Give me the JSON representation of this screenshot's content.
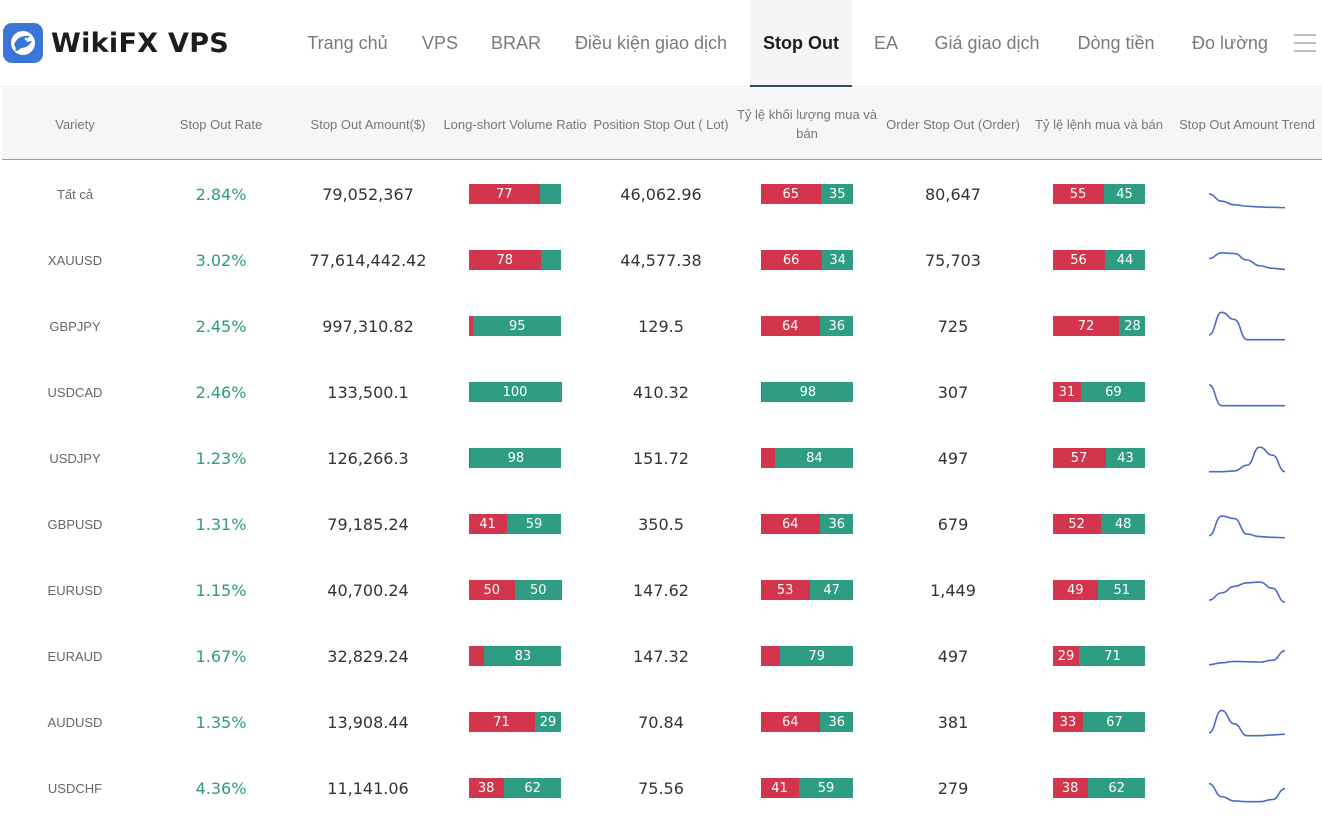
{
  "app": {
    "logo_text": "WikiFX VPS",
    "logo_icon": "eagle-icon"
  },
  "nav": {
    "items": [
      {
        "label": "Trang chủ",
        "active": false
      },
      {
        "label": "VPS",
        "active": false
      },
      {
        "label": "BRAR",
        "active": false
      },
      {
        "label": "Điều kiện giao dịch",
        "active": false
      },
      {
        "label": "Stop Out",
        "active": true
      },
      {
        "label": "EA",
        "active": false
      },
      {
        "label": "Giá giao dịch",
        "active": false
      },
      {
        "label": "Dòng tiền",
        "active": false
      },
      {
        "label": "Đo lường",
        "active": false
      }
    ],
    "menu_icon": "hamburger-menu-icon"
  },
  "table": {
    "headers": [
      "Variety",
      "Stop Out Rate",
      "Stop Out Amount($)",
      "Long-short Volume Ratio",
      "Position Stop Out ( Lot)",
      "Tỷ lệ khối lượng mua và bán",
      "Order Stop Out (Order)",
      "Tỷ lệ lệnh mua và bán",
      "Stop Out Amount Trend"
    ],
    "rows": [
      {
        "variety": "Tất cả",
        "rate": "2.84%",
        "amount": "79,052,367",
        "ls_ratio": [
          77,
          23
        ],
        "ls_labels": [
          "77",
          ""
        ],
        "position": "46,062.96",
        "vol_ratio": [
          65,
          35
        ],
        "vol_labels": [
          "65",
          "35"
        ],
        "orders": "80,647",
        "order_ratio": [
          55,
          45
        ],
        "order_labels": [
          "55",
          "45"
        ],
        "trend": [
          5,
          7,
          8,
          8.4,
          8.6,
          8.7,
          8.8
        ]
      },
      {
        "variety": "XAUUSD",
        "rate": "3.02%",
        "amount": "77,614,442.42",
        "ls_ratio": [
          78,
          22
        ],
        "ls_labels": [
          "78",
          ""
        ],
        "position": "44,577.38",
        "vol_ratio": [
          66,
          34
        ],
        "vol_labels": [
          "66",
          "34"
        ],
        "orders": "75,703",
        "order_ratio": [
          56,
          44
        ],
        "order_labels": [
          "56",
          "44"
        ],
        "trend": [
          4.6,
          3,
          3.2,
          5,
          6.6,
          7.3,
          7.6
        ]
      },
      {
        "variety": "GBPJPY",
        "rate": "2.45%",
        "amount": "997,310.82",
        "ls_ratio": [
          5,
          95
        ],
        "ls_labels": [
          "",
          "95"
        ],
        "position": "129.5",
        "vol_ratio": [
          64,
          36
        ],
        "vol_labels": [
          "64",
          "36"
        ],
        "orders": "725",
        "order_ratio": [
          72,
          28
        ],
        "order_labels": [
          "72",
          "28"
        ],
        "trend": [
          7.5,
          1.2,
          3.2,
          8.8,
          8.8,
          8.8,
          8.8
        ]
      },
      {
        "variety": "USDCAD",
        "rate": "2.46%",
        "amount": "133,500.1",
        "ls_ratio": [
          0,
          100
        ],
        "ls_labels": [
          "",
          "100"
        ],
        "position": "410.32",
        "vol_ratio": [
          2,
          98
        ],
        "vol_labels": [
          "",
          "98"
        ],
        "orders": "307",
        "order_ratio": [
          31,
          69
        ],
        "order_labels": [
          "31",
          "69"
        ],
        "trend": [
          3,
          8.8,
          8.8,
          8.8,
          8.8,
          8.8,
          8.8
        ]
      },
      {
        "variety": "USDJPY",
        "rate": "1.23%",
        "amount": "126,266.3",
        "ls_ratio": [
          2,
          98
        ],
        "ls_labels": [
          "",
          "98"
        ],
        "position": "151.72",
        "vol_ratio": [
          16,
          84
        ],
        "vol_labels": [
          "",
          "84"
        ],
        "orders": "497",
        "order_ratio": [
          57,
          43
        ],
        "order_labels": [
          "57",
          "43"
        ],
        "trend": [
          8.8,
          8.8,
          8.6,
          7,
          2,
          4.2,
          8.8
        ]
      },
      {
        "variety": "GBPUSD",
        "rate": "1.31%",
        "amount": "79,185.24",
        "ls_ratio": [
          41,
          59
        ],
        "ls_labels": [
          "41",
          "59"
        ],
        "position": "350.5",
        "vol_ratio": [
          64,
          36
        ],
        "vol_labels": [
          "64",
          "36"
        ],
        "orders": "679",
        "order_ratio": [
          52,
          48
        ],
        "order_labels": [
          "52",
          "48"
        ],
        "trend": [
          8.2,
          2.8,
          3.5,
          7.8,
          8.5,
          8.7,
          8.8
        ]
      },
      {
        "variety": "EURUSD",
        "rate": "1.15%",
        "amount": "40,700.24",
        "ls_ratio": [
          50,
          50
        ],
        "ls_labels": [
          "50",
          "50"
        ],
        "position": "147.62",
        "vol_ratio": [
          53,
          47
        ],
        "vol_labels": [
          "53",
          "47"
        ],
        "orders": "1,449",
        "order_ratio": [
          49,
          51
        ],
        "order_labels": [
          "49",
          "51"
        ],
        "trend": [
          7.8,
          5.8,
          4,
          3,
          2.8,
          4.5,
          8.4
        ]
      },
      {
        "variety": "EURAUD",
        "rate": "1.67%",
        "amount": "32,829.24",
        "ls_ratio": [
          17,
          83
        ],
        "ls_labels": [
          "",
          "83"
        ],
        "position": "147.32",
        "vol_ratio": [
          21,
          79
        ],
        "vol_labels": [
          "",
          "79"
        ],
        "orders": "497",
        "order_ratio": [
          29,
          71
        ],
        "order_labels": [
          "29",
          "71"
        ],
        "trend": [
          7.4,
          6.9,
          6.5,
          6.6,
          6.7,
          6.2,
          3.6
        ]
      },
      {
        "variety": "AUDUSD",
        "rate": "1.35%",
        "amount": "13,908.44",
        "ls_ratio": [
          71,
          29
        ],
        "ls_labels": [
          "71",
          "29"
        ],
        "position": "70.84",
        "vol_ratio": [
          64,
          36
        ],
        "vol_labels": [
          "64",
          "36"
        ],
        "orders": "381",
        "order_ratio": [
          33,
          67
        ],
        "order_labels": [
          "33",
          "67"
        ],
        "trend": [
          8,
          1.8,
          5.5,
          8.8,
          8.8,
          8.6,
          8.4
        ]
      },
      {
        "variety": "USDCHF",
        "rate": "4.36%",
        "amount": "11,141.06",
        "ls_ratio": [
          38,
          62
        ],
        "ls_labels": [
          "38",
          "62"
        ],
        "position": "75.56",
        "vol_ratio": [
          41,
          59
        ],
        "vol_labels": [
          "41",
          "59"
        ],
        "orders": "279",
        "order_ratio": [
          38,
          62
        ],
        "order_labels": [
          "38",
          "62"
        ],
        "trend": [
          3.8,
          7.4,
          8.6,
          8.8,
          8.8,
          8.2,
          5.2
        ]
      }
    ]
  },
  "colors": {
    "sell": "#d2354c",
    "buy": "#2f9d84",
    "rate": "#2e9a80",
    "trend_line": "#4a6cc4"
  }
}
